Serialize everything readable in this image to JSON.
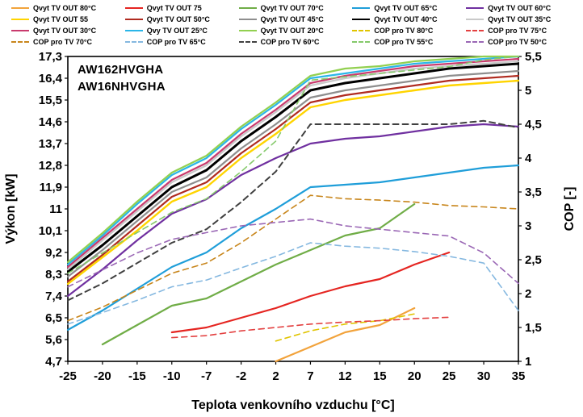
{
  "chart_data": {
    "type": "line",
    "title": "AW162HVGHA",
    "title2": "AW16NHVGHA",
    "xlabel": "Teplota venkovního vzduchu [°C]",
    "ylabel_left": "Výkon [kW]",
    "ylabel_right": "COP [-]",
    "grid": false,
    "legend_position": "top",
    "x_categories": [
      -25,
      -20,
      -15,
      -10,
      -7,
      -2,
      2,
      7,
      12,
      15,
      20,
      25,
      30,
      35
    ],
    "y_left": {
      "min": 4.7,
      "max": 17.3,
      "ticks": [
        "4,7",
        "5,6",
        "6,5",
        "7,4",
        "8,3",
        "9,2",
        "10,1",
        "11",
        "11,9",
        "12,8",
        "13,7",
        "14,6",
        "15,5",
        "16,4",
        "17,3"
      ]
    },
    "y_right": {
      "min": 1,
      "max": 5.5,
      "ticks": [
        "1",
        "1,5",
        "2",
        "2,5",
        "3",
        "3,5",
        "4",
        "4,5",
        "5",
        "5,5"
      ]
    },
    "series": [
      {
        "name": "Qvyt TV OUT 80°C",
        "axis": "left",
        "color": "#F2A33C",
        "dashed": false,
        "x": [
          2,
          7,
          12,
          15,
          20
        ],
        "values": [
          4.7,
          5.3,
          5.9,
          6.2,
          6.9
        ]
      },
      {
        "name": "Qvyt TV OUT 75",
        "axis": "left",
        "color": "#E52521",
        "dashed": false,
        "x": [
          -10,
          -7,
          -2,
          2,
          7,
          12,
          15,
          20,
          25
        ],
        "values": [
          5.9,
          6.1,
          6.5,
          6.9,
          7.4,
          7.8,
          8.1,
          8.7,
          9.2
        ]
      },
      {
        "name": "Qvyt TV OUT 70°C",
        "axis": "left",
        "color": "#70AD47",
        "dashed": false,
        "x": [
          -20,
          -15,
          -10,
          -7,
          -2,
          2,
          7,
          12,
          15,
          20
        ],
        "values": [
          5.4,
          6.2,
          7.0,
          7.3,
          8.0,
          8.7,
          9.3,
          9.9,
          10.2,
          11.2
        ]
      },
      {
        "name": "Qvyt TV OUT 65°C",
        "axis": "left",
        "color": "#1F9ED9",
        "dashed": false,
        "values": [
          6.0,
          6.8,
          7.7,
          8.6,
          9.2,
          10.2,
          11.0,
          11.9,
          12.0,
          12.1,
          12.3,
          12.5,
          12.7,
          12.8
        ]
      },
      {
        "name": "Qvyt TV OUT 60°C",
        "axis": "left",
        "color": "#7030A0",
        "dashed": false,
        "values": [
          7.4,
          8.5,
          9.7,
          10.8,
          11.4,
          12.4,
          13.1,
          13.7,
          13.9,
          14.0,
          14.2,
          14.4,
          14.5,
          14.4
        ]
      },
      {
        "name": "Qvyt TV OUT 55",
        "axis": "left",
        "color": "#FFD400",
        "dashed": false,
        "width": 2.4,
        "values": [
          7.9,
          9.0,
          10.1,
          11.3,
          11.9,
          13.1,
          14.1,
          15.2,
          15.5,
          15.7,
          15.9,
          16.1,
          16.2,
          16.3
        ]
      },
      {
        "name": "Qvyt TV OUT 50°C",
        "axis": "left",
        "color": "#B02B20",
        "dashed": false,
        "values": [
          8.0,
          9.1,
          10.3,
          11.5,
          12.1,
          13.3,
          14.3,
          15.4,
          15.7,
          15.9,
          16.1,
          16.3,
          16.4,
          16.5
        ]
      },
      {
        "name": "Qvyt TV OUT 45°C",
        "axis": "left",
        "color": "#8E8E8E",
        "dashed": false,
        "values": [
          8.2,
          9.3,
          10.5,
          11.7,
          12.3,
          13.5,
          14.5,
          15.6,
          15.9,
          16.1,
          16.3,
          16.5,
          16.6,
          16.7
        ]
      },
      {
        "name": "Qvyt TV OUT 40°C",
        "axis": "left",
        "color": "#000000",
        "dashed": false,
        "width": 3,
        "values": [
          8.4,
          9.5,
          10.7,
          11.9,
          12.6,
          13.8,
          14.8,
          15.9,
          16.2,
          16.4,
          16.6,
          16.8,
          16.9,
          17.0
        ]
      },
      {
        "name": "Qvyt TV OUT 35°C",
        "axis": "left",
        "color": "#C9C9C9",
        "dashed": false,
        "values": [
          8.5,
          9.7,
          10.9,
          12.1,
          12.8,
          14.0,
          15.0,
          16.1,
          16.4,
          16.6,
          16.8,
          16.9,
          17.0,
          17.1
        ]
      },
      {
        "name": "Qvyt TV OUT 30°C",
        "axis": "left",
        "color": "#C93B6E",
        "dashed": false,
        "values": [
          8.6,
          9.8,
          11.0,
          12.2,
          12.9,
          14.1,
          15.1,
          16.2,
          16.5,
          16.7,
          16.9,
          17.0,
          17.1,
          17.2
        ]
      },
      {
        "name": "Qvy TV OUT 25°C",
        "axis": "left",
        "color": "#2BB6E8",
        "dashed": false,
        "values": [
          8.7,
          9.9,
          11.2,
          12.4,
          13.1,
          14.3,
          15.3,
          16.4,
          16.6,
          16.8,
          17.0,
          17.1,
          17.2,
          17.3
        ]
      },
      {
        "name": "Qvyt TV OUT 20°C",
        "axis": "left",
        "color": "#92D050",
        "dashed": false,
        "values": [
          8.8,
          10.0,
          11.3,
          12.5,
          13.2,
          14.4,
          15.4,
          16.5,
          16.8,
          16.9,
          17.1,
          17.2,
          17.3,
          17.3
        ]
      },
      {
        "name": "COP pro TV 80°C",
        "axis": "right",
        "color": "#E0C400",
        "dashed": true,
        "x": [
          2,
          7,
          12,
          15,
          20
        ],
        "values": [
          1.3,
          1.45,
          1.55,
          1.6,
          1.7
        ]
      },
      {
        "name": "COP pro TV 75°C",
        "axis": "right",
        "color": "#E34040",
        "dashed": true,
        "x": [
          -10,
          -7,
          -2,
          2,
          7,
          12,
          15,
          20,
          25
        ],
        "values": [
          1.35,
          1.38,
          1.45,
          1.5,
          1.55,
          1.58,
          1.6,
          1.63,
          1.65
        ]
      },
      {
        "name": "COP pro TV 70°C",
        "axis": "right",
        "color": "#C8861C",
        "dashed": true,
        "values": [
          1.6,
          1.8,
          2.05,
          2.3,
          2.45,
          2.75,
          3.1,
          3.45,
          3.4,
          3.38,
          3.35,
          3.3,
          3.28,
          3.25
        ]
      },
      {
        "name": "COP pro TV 65°C",
        "axis": "right",
        "color": "#85B8E0",
        "dashed": true,
        "values": [
          1.55,
          1.72,
          1.9,
          2.1,
          2.2,
          2.38,
          2.55,
          2.75,
          2.7,
          2.67,
          2.62,
          2.55,
          2.45,
          1.75
        ]
      },
      {
        "name": "COP pro TV 60°C",
        "axis": "right",
        "color": "#404040",
        "dashed": true,
        "width": 2,
        "values": [
          1.9,
          2.15,
          2.45,
          2.75,
          2.95,
          3.35,
          3.8,
          4.5,
          4.5,
          4.5,
          4.5,
          4.5,
          4.55,
          4.45
        ]
      },
      {
        "name": "COP pro TV 55°C",
        "axis": "right",
        "color": "#85C96B",
        "dashed": true,
        "values": [
          2.3,
          2.6,
          2.9,
          3.2,
          3.4,
          3.8,
          4.25,
          5.15,
          5.2,
          5.25,
          5.3,
          5.35,
          5.45,
          5.5
        ]
      },
      {
        "name": "COP pro TV 50°C",
        "axis": "right",
        "color": "#9A67B5",
        "dashed": true,
        "values": [
          2.1,
          2.35,
          2.6,
          2.8,
          2.9,
          3.0,
          3.05,
          3.1,
          3.0,
          2.95,
          2.9,
          2.85,
          2.6,
          2.15
        ]
      }
    ]
  }
}
